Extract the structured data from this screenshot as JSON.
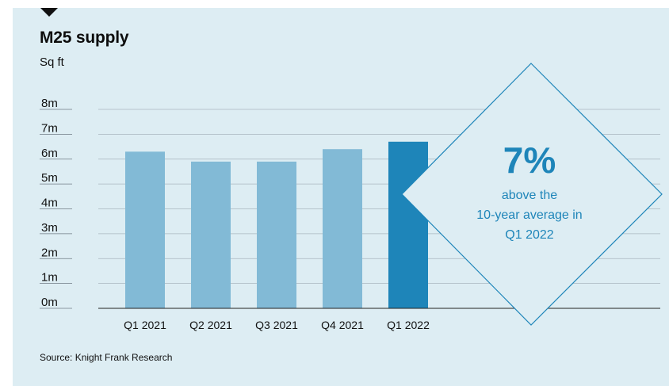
{
  "title": "M25 supply",
  "unit_label": "Sq ft",
  "source": "Source: Knight Frank Research",
  "callout": {
    "value": "7%",
    "line1": "above the",
    "line2": "10-year average in",
    "line3": "Q1 2022"
  },
  "colors": {
    "bar": "#82bad6",
    "highlight": "#1e85b9",
    "callout": "#1e85b9",
    "background": "#ddedf3"
  },
  "chart_data": {
    "type": "bar",
    "categories": [
      "Q1 2021",
      "Q2 2021",
      "Q3 2021",
      "Q4 2021",
      "Q1 2022"
    ],
    "values": [
      6.3,
      5.9,
      5.9,
      6.4,
      6.7
    ],
    "highlight_index": 4,
    "ylabel": "Sq ft",
    "ylim": [
      0,
      8
    ],
    "yticks": [
      "0m",
      "1m",
      "2m",
      "3m",
      "4m",
      "5m",
      "6m",
      "7m",
      "8m"
    ],
    "grid": true
  }
}
